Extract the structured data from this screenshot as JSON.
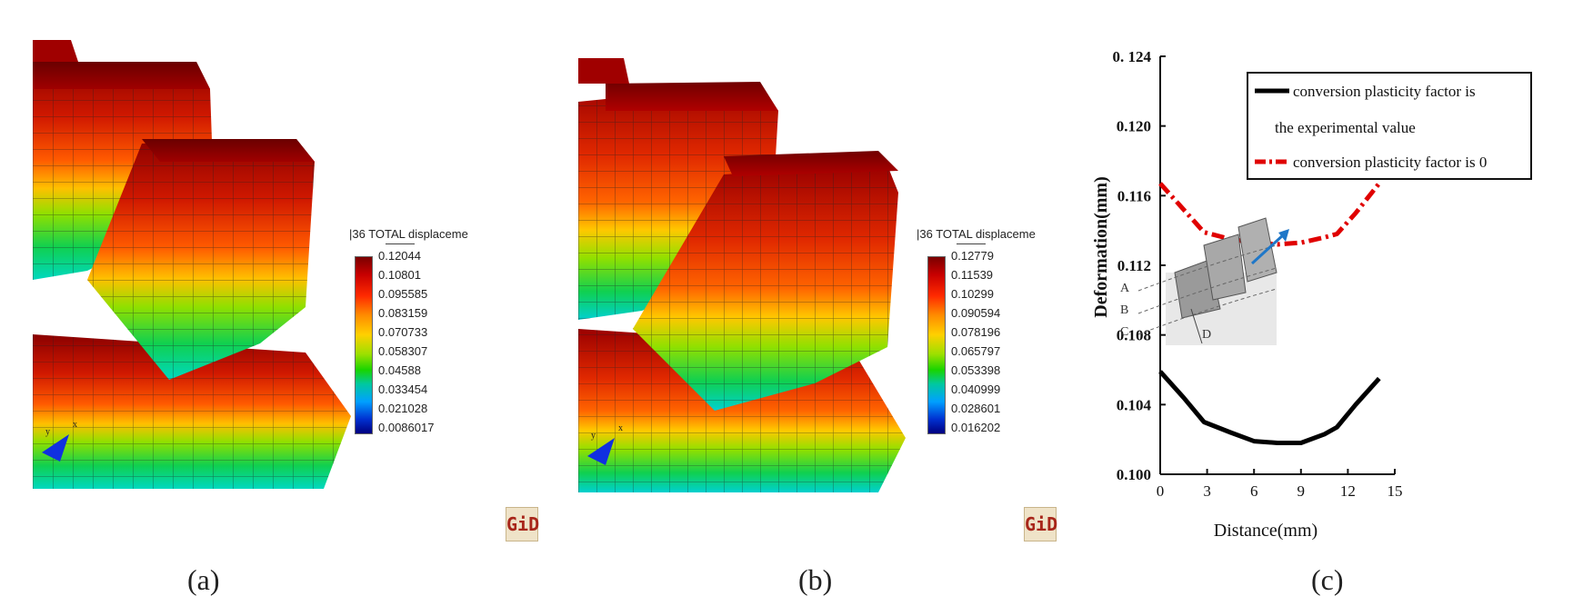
{
  "panels": {
    "a": {
      "caption": "(a)",
      "legend_title": "|36 TOTAL displaceme",
      "legend_values": [
        "0.12044",
        "0.10801",
        "0.095585",
        "0.083159",
        "0.070733",
        "0.058307",
        "0.04588",
        "0.033454",
        "0.021028",
        "0.0086017"
      ],
      "logo": "GiD"
    },
    "b": {
      "caption": "(b)",
      "legend_title": "|36 TOTAL displaceme",
      "legend_values": [
        "0.12779",
        "0.11539",
        "0.10299",
        "0.090594",
        "0.078196",
        "0.065797",
        "0.053398",
        "0.040999",
        "0.028601",
        "0.016202"
      ],
      "logo": "GiD"
    },
    "c": {
      "caption": "(c)"
    }
  },
  "chart_data": {
    "type": "line",
    "title": "",
    "xlabel": "Distance(mm)",
    "ylabel": "Deformation(mm)",
    "xlim": [
      0,
      15
    ],
    "ylim": [
      0.1,
      0.124
    ],
    "x_ticks": [
      "0",
      "3",
      "6",
      "9",
      "12",
      "15"
    ],
    "y_ticks": [
      "0.100",
      "0.104",
      "0.108",
      "0.112",
      "0.116",
      "0.120",
      "0. 124"
    ],
    "legend": {
      "position": "top-right",
      "entries": [
        {
          "text_line1": "conversion plasticity factor is",
          "text_line2": "the experimental value",
          "color": "#000000",
          "style": "solid"
        },
        {
          "text_line1": "conversion plasticity factor is 0",
          "color": "#e00000",
          "style": "dash-dot"
        }
      ]
    },
    "series": [
      {
        "color": "#000000",
        "x": [
          0,
          1.5,
          2.8,
          4.5,
          6,
          7.5,
          9,
          10.5,
          11.3,
          12.5,
          14
        ],
        "y": [
          0.1059,
          0.1044,
          0.103,
          0.1024,
          0.1019,
          0.1018,
          0.1018,
          0.1023,
          0.1027,
          0.104,
          0.1055
        ]
      },
      {
        "color": "#e00000",
        "x": [
          0,
          1.5,
          2.8,
          4.5,
          6,
          7.5,
          9,
          10.5,
          11.3,
          12.5,
          14
        ],
        "y": [
          0.1167,
          0.1152,
          0.1139,
          0.1135,
          0.1133,
          0.1132,
          0.1133,
          0.1136,
          0.1138,
          0.115,
          0.1167
        ]
      }
    ],
    "inset_labels": [
      "A",
      "B",
      "C",
      "D"
    ]
  }
}
